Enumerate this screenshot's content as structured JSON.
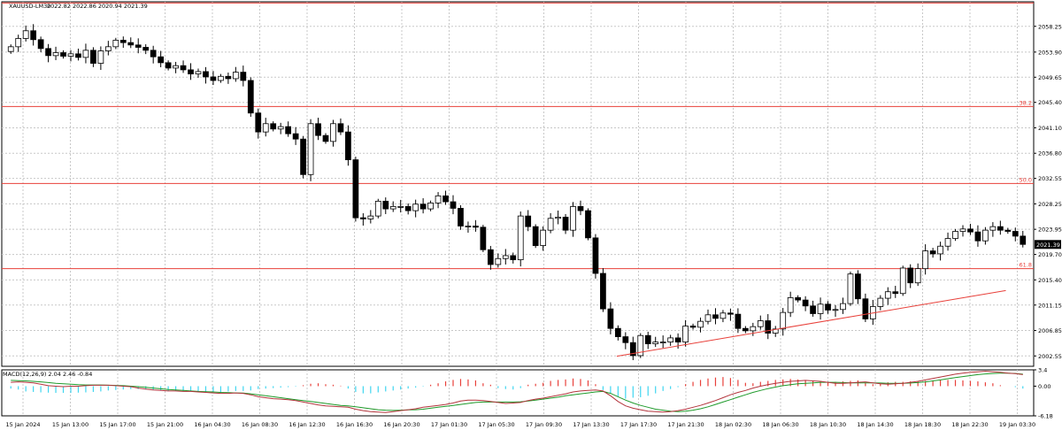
{
  "chart_data": [
    {
      "type": "candlestick",
      "title": "XAUUSD-LM30",
      "ohlc_label": "2022.82 2022.86 2020.94 2021.39",
      "current_price": 2021.39,
      "current_price_label": "2021.39",
      "ylim": [
        2000.8,
        2062.4
      ],
      "y_ticks": [
        "2058.25",
        "2053.90",
        "2049.65",
        "2045.40",
        "2041.10",
        "2036.80",
        "2032.55",
        "2028.25",
        "2023.95",
        "2019.70",
        "2015.40",
        "2011.15",
        "2006.85",
        "2002.55"
      ],
      "x_ticks": [
        "15 Jan 2024",
        "15 Jan 13:00",
        "15 Jan 17:00",
        "15 Jan 21:00",
        "16 Jan 04:30",
        "16 Jan 08:30",
        "16 Jan 12:30",
        "16 Jan 16:30",
        "16 Jan 20:30",
        "17 Jan 01:30",
        "17 Jan 05:30",
        "17 Jan 09:30",
        "17 Jan 13:30",
        "17 Jan 17:30",
        "17 Jan 21:30",
        "18 Jan 02:30",
        "18 Jan 06:30",
        "18 Jan 10:30",
        "18 Jan 14:30",
        "18 Jan 18:30",
        "18 Jan 22:30",
        "19 Jan 03:30"
      ],
      "fib_levels": [
        {
          "label": "",
          "price": 2062.2
        },
        {
          "label": "38.2",
          "price": 2044.7
        },
        {
          "label": "50.0",
          "price": 2031.7
        },
        {
          "label": "61.8",
          "price": 2017.3
        }
      ],
      "trendline": {
        "start": [
          0.596,
          2002.5
        ],
        "end": [
          0.973,
          2013.6
        ]
      },
      "closes": [
        2054.8,
        2056.2,
        2057.5,
        2056.0,
        2054.5,
        2053.3,
        2053.8,
        2053.2,
        2053.6,
        2053.0,
        2054.2,
        2052.0,
        2054.1,
        2054.8,
        2055.9,
        2055.5,
        2055.1,
        2054.7,
        2054.2,
        2053.1,
        2052.1,
        2051.2,
        2051.6,
        2050.9,
        2050.2,
        2050.6,
        2049.7,
        2049.1,
        2049.8,
        2049.4,
        2050.5,
        2049.1,
        2043.6,
        2040.4,
        2041.8,
        2040.9,
        2041.3,
        2040.1,
        2039.2,
        2033.2,
        2041.8,
        2039.8,
        2038.8,
        2041.8,
        2040.4,
        2035.7,
        2025.9,
        2025.7,
        2026.2,
        2028.7,
        2027.4,
        2027.8,
        2027.8,
        2027.1,
        2028.2,
        2027.4,
        2028.4,
        2029.6,
        2028.6,
        2027.5,
        2024.5,
        2024.5,
        2024.3,
        2020.5,
        2018.0,
        2019.0,
        2019.5,
        2018.8,
        2026.2,
        2024.4,
        2021.2,
        2023.8,
        2025.8,
        2026.0,
        2023.8,
        2027.8,
        2027.1,
        2022.5,
        2016.5,
        2010.5,
        2007.2,
        2005.8,
        2004.8,
        2002.6,
        2006.0,
        2004.6,
        2004.9,
        2004.9,
        2005.6,
        2004.9,
        2007.6,
        2007.4,
        2008.4,
        2009.5,
        2008.9,
        2009.8,
        2009.6,
        2007.2,
        2006.8,
        2007.5,
        2008.5,
        2006.4,
        2007.1,
        2009.9,
        2012.4,
        2012.0,
        2011.0,
        2009.7,
        2011.3,
        2010.3,
        2010.4,
        2011.4,
        2016.4,
        2012.2,
        2008.8,
        2010.9,
        2012.3,
        2013.4,
        2013.1,
        2017.4,
        2014.9,
        2017.3,
        2020.3,
        2019.8,
        2021.1,
        2022.4,
        2023.6,
        2024.0,
        2023.5,
        2022.0,
        2023.8,
        2024.4,
        2023.8,
        2023.6,
        2022.8,
        2021.4
      ]
    },
    {
      "type": "macd",
      "title": "MACD(12,26,9) 2.04 2.46 -0.84",
      "ylim": [
        -6.18,
        3.4
      ],
      "y_ticks": [
        "3.4",
        "0.00",
        "-6.18"
      ],
      "histogram": [
        -0.5,
        -0.7,
        -1.1,
        -1.2,
        -1.3,
        -1.35,
        -1.4,
        -1.4,
        -1.4,
        -1.35,
        -1.3,
        -1.2,
        -1.1,
        -0.9,
        -0.8,
        -0.7,
        -0.6,
        -0.6,
        -0.7,
        -0.8,
        -0.9,
        -1.0,
        -1.0,
        -1.1,
        -1.1,
        -1.1,
        -1.2,
        -1.2,
        -1.2,
        -1.1,
        -1.0,
        -1.0,
        -0.9,
        -0.6,
        -0.5,
        -0.4,
        -0.3,
        -0.2,
        -0.1,
        0.2,
        0.5,
        0.6,
        0.4,
        0.3,
        0.1,
        -0.5,
        -1.2,
        -1.5,
        -1.5,
        -1.3,
        -1.1,
        -0.9,
        -0.7,
        -0.5,
        -0.3,
        -0.1,
        0.3,
        0.6,
        1.0,
        1.3,
        1.5,
        1.4,
        1.2,
        0.6,
        0.3,
        -0.4,
        -0.6,
        -0.7,
        -0.4,
        0.3,
        0.5,
        0.7,
        1.1,
        1.3,
        1.4,
        1.6,
        1.5,
        1.2,
        0.4,
        -0.8,
        -1.5,
        -2.1,
        -2.6,
        -2.4,
        -2.3,
        -2.0,
        -1.5,
        -1.0,
        -0.6,
        -0.2,
        0.4,
        0.9,
        1.3,
        1.6,
        1.8,
        1.9,
        1.7,
        1.3,
        0.7,
        0.6,
        0.9,
        1.1,
        1.3,
        1.4,
        1.5,
        1.4,
        1.2,
        1.0,
        0.9,
        0.8,
        0.9,
        1.0,
        1.1,
        1.2,
        0.7,
        0.4,
        0.5,
        0.8,
        0.9,
        0.9,
        1.0,
        1.0,
        1.1,
        1.2,
        1.3,
        1.3,
        1.3,
        1.2,
        1.1,
        1.0,
        0.8,
        0.6,
        0.2,
        0.0,
        -0.2,
        -0.5
      ],
      "macd": [
        0.8,
        0.9,
        0.8,
        0.7,
        0.4,
        0.1,
        0.0,
        -0.1,
        0.0,
        0.0,
        0.1,
        0.2,
        0.2,
        0.2,
        0.1,
        0.0,
        -0.1,
        -0.4,
        -0.6,
        -0.8,
        -0.9,
        -1.0,
        -1.0,
        -1.1,
        -1.1,
        -1.2,
        -1.3,
        -1.4,
        -1.5,
        -1.5,
        -1.4,
        -1.5,
        -1.8,
        -2.2,
        -2.4,
        -2.6,
        -2.7,
        -2.8,
        -3.0,
        -3.3,
        -3.6,
        -3.9,
        -4.1,
        -4.2,
        -4.3,
        -4.4,
        -4.8,
        -5.1,
        -5.3,
        -5.4,
        -5.5,
        -5.3,
        -5.1,
        -4.9,
        -4.7,
        -4.4,
        -4.2,
        -4.0,
        -3.8,
        -3.5,
        -3.1,
        -2.9,
        -2.9,
        -3.0,
        -3.2,
        -3.4,
        -3.6,
        -3.5,
        -3.4,
        -3.0,
        -2.7,
        -2.5,
        -2.2,
        -1.9,
        -1.6,
        -1.2,
        -1.0,
        -0.9,
        -0.8,
        -1.0,
        -2.0,
        -3.2,
        -4.1,
        -4.6,
        -4.9,
        -5.2,
        -5.3,
        -5.4,
        -5.3,
        -5.1,
        -4.8,
        -4.4,
        -4.0,
        -3.5,
        -3.0,
        -2.4,
        -1.8,
        -1.3,
        -0.9,
        -0.4,
        0.0,
        0.3,
        0.6,
        0.8,
        1.0,
        1.1,
        1.2,
        1.1,
        1.0,
        0.8,
        0.6,
        0.6,
        0.7,
        0.8,
        0.9,
        0.7,
        0.5,
        0.4,
        0.5,
        0.6,
        0.8,
        1.0,
        1.3,
        1.6,
        1.9,
        2.2,
        2.5,
        2.7,
        2.9,
        3.0,
        3.1,
        3.0,
        2.9,
        2.7,
        2.6,
        2.4
      ],
      "signal": [
        1.2,
        1.15,
        1.1,
        1.0,
        0.9,
        0.75,
        0.6,
        0.5,
        0.4,
        0.3,
        0.25,
        0.25,
        0.25,
        0.2,
        0.15,
        0.1,
        0.0,
        -0.1,
        -0.25,
        -0.4,
        -0.55,
        -0.7,
        -0.8,
        -0.9,
        -1.0,
        -1.1,
        -1.15,
        -1.2,
        -1.3,
        -1.35,
        -1.4,
        -1.45,
        -1.6,
        -1.8,
        -2.0,
        -2.2,
        -2.4,
        -2.6,
        -2.8,
        -3.0,
        -3.2,
        -3.4,
        -3.6,
        -3.8,
        -4.0,
        -4.1,
        -4.3,
        -4.5,
        -4.7,
        -4.9,
        -5.0,
        -5.05,
        -5.0,
        -4.95,
        -4.9,
        -4.8,
        -4.6,
        -4.4,
        -4.2,
        -4.0,
        -3.8,
        -3.6,
        -3.4,
        -3.3,
        -3.3,
        -3.3,
        -3.3,
        -3.3,
        -3.25,
        -3.1,
        -2.9,
        -2.7,
        -2.5,
        -2.3,
        -2.0,
        -1.8,
        -1.6,
        -1.4,
        -1.2,
        -1.1,
        -1.5,
        -2.2,
        -2.9,
        -3.5,
        -4.0,
        -4.4,
        -4.8,
        -5.0,
        -5.2,
        -5.3,
        -5.2,
        -5.0,
        -4.7,
        -4.3,
        -3.8,
        -3.3,
        -2.8,
        -2.3,
        -1.8,
        -1.3,
        -0.9,
        -0.5,
        -0.2,
        0.1,
        0.3,
        0.5,
        0.6,
        0.7,
        0.8,
        0.8,
        0.8,
        0.75,
        0.7,
        0.7,
        0.7,
        0.7,
        0.65,
        0.6,
        0.6,
        0.6,
        0.65,
        0.75,
        0.9,
        1.1,
        1.3,
        1.55,
        1.8,
        2.0,
        2.2,
        2.4,
        2.55,
        2.65,
        2.7,
        2.7,
        2.65,
        2.5
      ]
    }
  ]
}
